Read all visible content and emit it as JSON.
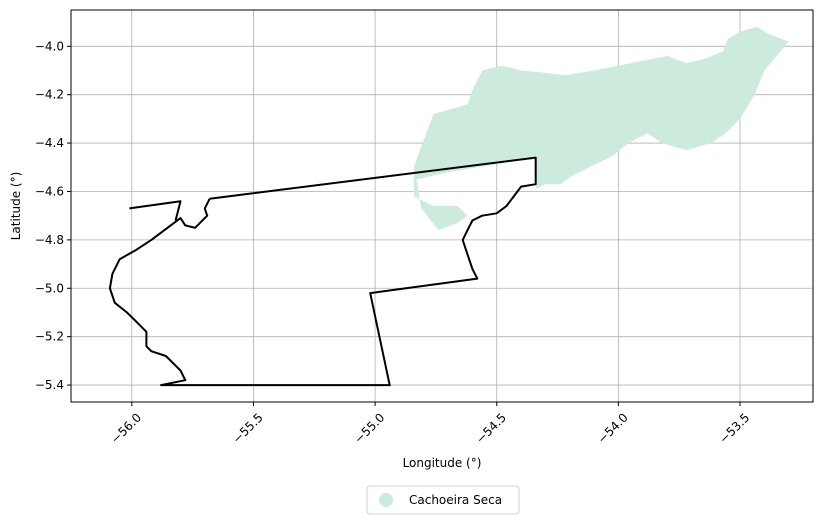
{
  "chart_data": {
    "type": "map",
    "xlabel": "Longitude (°)",
    "ylabel": "Latitude (°)",
    "xlim": [
      -56.25,
      -53.2
    ],
    "ylim": [
      -5.47,
      -3.85
    ],
    "grid": true,
    "x_ticks": [
      -56.0,
      -55.5,
      -55.0,
      -54.5,
      -54.0,
      -53.5
    ],
    "x_tick_labels": [
      "−56.0",
      "−55.5",
      "−55.0",
      "−54.5",
      "−54.0",
      "−53.5"
    ],
    "y_ticks": [
      -4.0,
      -4.2,
      -4.4,
      -4.6,
      -4.8,
      -5.0,
      -5.2,
      -5.4
    ],
    "y_tick_labels": [
      "−4.0",
      "−4.2",
      "−4.4",
      "−4.6",
      "−4.8",
      "−5.0",
      "−5.2",
      "−5.4"
    ],
    "legend": {
      "placement": "bottom-center, below axes",
      "entries": [
        {
          "label": "Cachoeira Seca",
          "color": "#cdebdc"
        }
      ]
    },
    "shapes": [
      {
        "name": "Cachoeira Seca",
        "fill": "#cdebdc",
        "stroke": "none",
        "coords": [
          [
            -54.82,
            -4.44
          ],
          [
            -54.76,
            -4.28
          ],
          [
            -54.62,
            -4.24
          ],
          [
            -54.6,
            -4.18
          ],
          [
            -54.56,
            -4.1
          ],
          [
            -54.48,
            -4.08
          ],
          [
            -54.4,
            -4.1
          ],
          [
            -54.3,
            -4.11
          ],
          [
            -54.22,
            -4.12
          ],
          [
            -54.1,
            -4.1
          ],
          [
            -54.0,
            -4.08
          ],
          [
            -53.9,
            -4.06
          ],
          [
            -53.8,
            -4.04
          ],
          [
            -53.72,
            -4.07
          ],
          [
            -53.64,
            -4.05
          ],
          [
            -53.57,
            -4.02
          ],
          [
            -53.55,
            -3.97
          ],
          [
            -53.5,
            -3.94
          ],
          [
            -53.43,
            -3.92
          ],
          [
            -53.38,
            -3.95
          ],
          [
            -53.3,
            -3.98
          ],
          [
            -53.4,
            -4.1
          ],
          [
            -53.44,
            -4.2
          ],
          [
            -53.5,
            -4.3
          ],
          [
            -53.56,
            -4.36
          ],
          [
            -53.62,
            -4.4
          ],
          [
            -53.72,
            -4.43
          ],
          [
            -53.82,
            -4.4
          ],
          [
            -53.88,
            -4.36
          ],
          [
            -53.96,
            -4.4
          ],
          [
            -54.02,
            -4.45
          ],
          [
            -54.1,
            -4.49
          ],
          [
            -54.18,
            -4.53
          ],
          [
            -54.24,
            -4.57
          ],
          [
            -54.3,
            -4.57
          ],
          [
            -54.34,
            -4.59
          ],
          [
            -54.34,
            -4.46
          ],
          [
            -54.52,
            -4.49
          ],
          [
            -54.7,
            -4.52
          ],
          [
            -54.83,
            -4.55
          ],
          [
            -54.81,
            -4.67
          ],
          [
            -54.74,
            -4.76
          ],
          [
            -54.66,
            -4.73
          ],
          [
            -54.62,
            -4.7
          ],
          [
            -54.66,
            -4.66
          ],
          [
            -54.76,
            -4.66
          ],
          [
            -54.84,
            -4.62
          ],
          [
            -54.84,
            -4.5
          ]
        ]
      },
      {
        "name": "outline",
        "fill": "none",
        "stroke": "#000000",
        "coords": [
          [
            -55.68,
            -4.63
          ],
          [
            -54.34,
            -4.46
          ],
          [
            -54.34,
            -4.57
          ],
          [
            -54.4,
            -4.58
          ],
          [
            -54.46,
            -4.66
          ],
          [
            -54.5,
            -4.69
          ],
          [
            -54.56,
            -4.7
          ],
          [
            -54.6,
            -4.72
          ],
          [
            -54.62,
            -4.76
          ],
          [
            -54.64,
            -4.8
          ],
          [
            -54.62,
            -4.86
          ],
          [
            -54.6,
            -4.92
          ],
          [
            -54.58,
            -4.96
          ],
          [
            -55.02,
            -5.02
          ],
          [
            -54.94,
            -5.4
          ],
          [
            -55.88,
            -5.4
          ],
          [
            -55.78,
            -5.38
          ],
          [
            -55.8,
            -5.34
          ],
          [
            -55.86,
            -5.28
          ],
          [
            -55.92,
            -5.26
          ],
          [
            -55.94,
            -5.24
          ],
          [
            -55.94,
            -5.18
          ],
          [
            -55.98,
            -5.14
          ],
          [
            -56.02,
            -5.1
          ],
          [
            -56.07,
            -5.06
          ],
          [
            -56.09,
            -5.0
          ],
          [
            -56.08,
            -4.94
          ],
          [
            -56.05,
            -4.88
          ],
          [
            -55.98,
            -4.84
          ],
          [
            -55.92,
            -4.8
          ],
          [
            -55.84,
            -4.74
          ],
          [
            -55.8,
            -4.71
          ],
          [
            -55.78,
            -4.74
          ],
          [
            -55.74,
            -4.75
          ],
          [
            -55.69,
            -4.7
          ],
          [
            -55.7,
            -4.67
          ],
          [
            -55.68,
            -4.63
          ]
        ]
      },
      {
        "name": "outline-spur",
        "fill": "none",
        "stroke": "#000000",
        "coords": [
          [
            -56.01,
            -4.67
          ],
          [
            -55.8,
            -4.64
          ],
          [
            -55.82,
            -4.72
          ]
        ]
      }
    ]
  }
}
